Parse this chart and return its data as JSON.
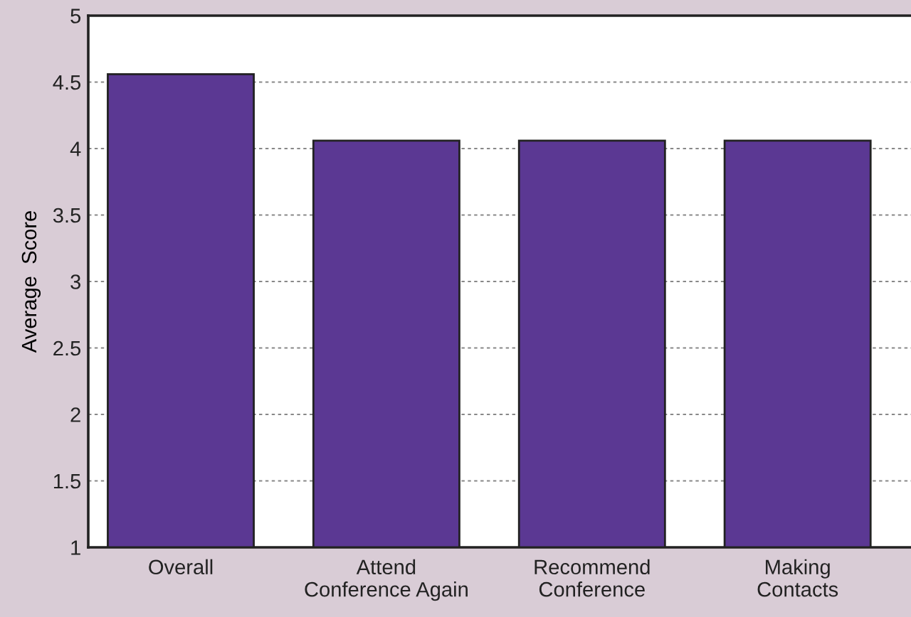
{
  "chart_data": {
    "type": "bar",
    "ylabel": "Average  Score",
    "categories": [
      "Overall",
      "Attend\nConference Again",
      "Recommend\nConference",
      "Making\nContacts"
    ],
    "values": [
      4.56,
      4.06,
      4.06,
      4.06
    ],
    "color": "#5b3893",
    "ylim": [
      1,
      5
    ],
    "yticks": [
      1,
      1.5,
      2,
      2.5,
      3,
      3.5,
      4,
      4.5,
      5
    ],
    "grid": "y"
  }
}
